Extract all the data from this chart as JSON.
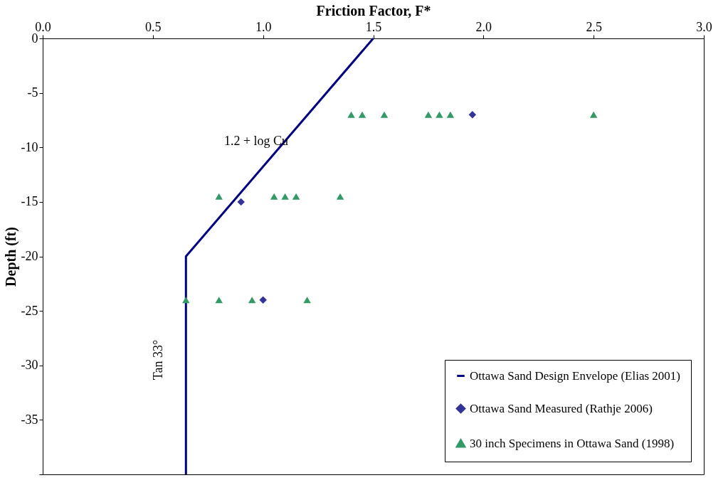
{
  "chart_data": {
    "type": "scatter",
    "xlabel": "Friction Factor, F*",
    "ylabel": "Depth (ft)",
    "xlim": [
      0,
      3
    ],
    "xticks": [
      {
        "value": 0,
        "label": "0.0"
      },
      0.5,
      {
        "value": 1,
        "label": "1.0"
      },
      1.5,
      {
        "value": 2,
        "label": "2.0"
      },
      2.5,
      {
        "value": 3,
        "label": "3.0"
      }
    ],
    "ylim": [
      -40,
      0
    ],
    "yticks": [
      {
        "value": -40,
        "label": null
      },
      -35,
      -30,
      -25,
      -20,
      -15,
      -10,
      -5,
      0
    ],
    "grid": false,
    "legend": "bottom right",
    "series": [
      {
        "name": "Ottawa Sand Design Envelope (Elias 2001)",
        "type": "line",
        "color": "#000080",
        "marker": "none",
        "line_style": "solid",
        "x": [
          1.5,
          0.65,
          0.65
        ],
        "values": [
          0,
          -20,
          -40
        ]
      },
      {
        "name": "Ottawa Sand Measured (Rathje 2006)",
        "color": "#333399",
        "marker": "diamond",
        "x": [
          1.95,
          0.9,
          1.0
        ],
        "values": [
          -7,
          -15,
          -24
        ]
      },
      {
        "name": "30 inch Specimens in Ottawa Sand (1998)",
        "color": "#339966",
        "marker": "triangle",
        "x": [
          1.4,
          1.45,
          1.55,
          1.75,
          1.8,
          1.85,
          2.5,
          0.8,
          1.05,
          1.1,
          1.15,
          1.35,
          0.65,
          0.8,
          0.95,
          1.2
        ],
        "values": [
          -7,
          -7,
          -7,
          -7,
          -7,
          -7,
          -7,
          -14.5,
          -14.5,
          -14.5,
          -14.5,
          -14.5,
          -24,
          -24,
          -24,
          -24
        ]
      }
    ],
    "annotations": [
      "1.2 + log Cu",
      "Tan 33°"
    ]
  }
}
